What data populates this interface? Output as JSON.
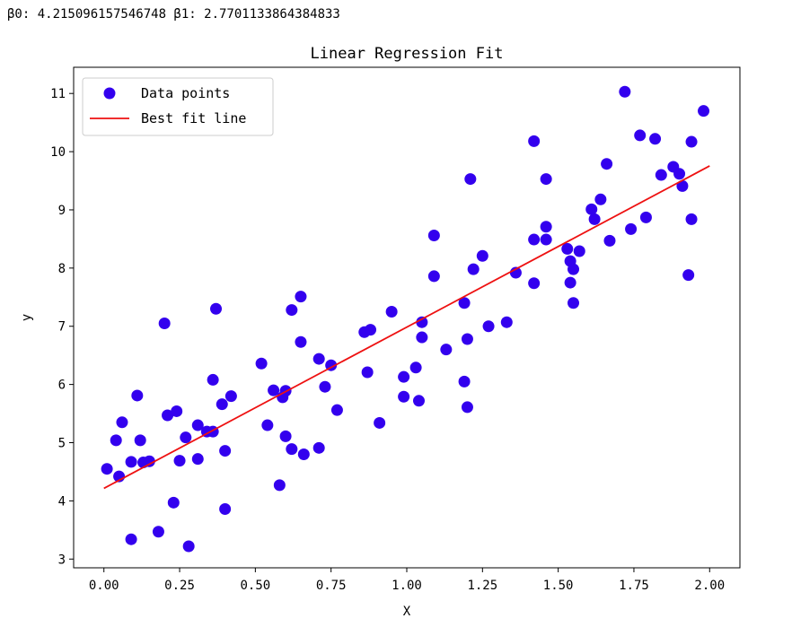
{
  "output": {
    "beta_line": "β0: 4.215096157546748 β1: 2.7701133864384833"
  },
  "chart_data": {
    "type": "scatter",
    "title": "Linear Regression Fit",
    "xlabel": "X",
    "ylabel": "y",
    "xlim": [
      -0.1,
      2.1
    ],
    "ylim": [
      2.85,
      11.45
    ],
    "xticks": [
      0.0,
      0.25,
      0.5,
      0.75,
      1.0,
      1.25,
      1.5,
      1.75,
      2.0
    ],
    "xtick_labels": [
      "0.00",
      "0.25",
      "0.50",
      "0.75",
      "1.00",
      "1.25",
      "1.50",
      "1.75",
      "2.00"
    ],
    "yticks": [
      3,
      4,
      5,
      6,
      7,
      8,
      9,
      10,
      11
    ],
    "ytick_labels": [
      "3",
      "4",
      "5",
      "6",
      "7",
      "8",
      "9",
      "10",
      "11"
    ],
    "grid": false,
    "legend_position": "top-left",
    "series": [
      {
        "name": "Data points",
        "kind": "scatter",
        "color": "#3300ee",
        "points": [
          [
            0.01,
            4.55
          ],
          [
            0.04,
            5.04
          ],
          [
            0.05,
            4.42
          ],
          [
            0.06,
            5.35
          ],
          [
            0.09,
            3.34
          ],
          [
            0.09,
            4.67
          ],
          [
            0.11,
            5.81
          ],
          [
            0.12,
            5.04
          ],
          [
            0.13,
            4.66
          ],
          [
            0.15,
            4.68
          ],
          [
            0.18,
            3.47
          ],
          [
            0.2,
            7.05
          ],
          [
            0.21,
            5.47
          ],
          [
            0.23,
            3.97
          ],
          [
            0.24,
            5.54
          ],
          [
            0.25,
            4.69
          ],
          [
            0.27,
            5.09
          ],
          [
            0.28,
            3.22
          ],
          [
            0.31,
            5.3
          ],
          [
            0.31,
            4.72
          ],
          [
            0.34,
            5.19
          ],
          [
            0.36,
            5.19
          ],
          [
            0.36,
            6.08
          ],
          [
            0.37,
            7.3
          ],
          [
            0.39,
            5.66
          ],
          [
            0.4,
            4.86
          ],
          [
            0.4,
            3.86
          ],
          [
            0.42,
            5.8
          ],
          [
            0.52,
            6.36
          ],
          [
            0.54,
            5.3
          ],
          [
            0.56,
            5.9
          ],
          [
            0.58,
            4.27
          ],
          [
            0.59,
            5.78
          ],
          [
            0.6,
            5.89
          ],
          [
            0.6,
            5.11
          ],
          [
            0.62,
            4.89
          ],
          [
            0.62,
            7.28
          ],
          [
            0.65,
            6.73
          ],
          [
            0.65,
            7.51
          ],
          [
            0.66,
            4.8
          ],
          [
            0.71,
            6.44
          ],
          [
            0.71,
            4.91
          ],
          [
            0.73,
            5.96
          ],
          [
            0.75,
            6.33
          ],
          [
            0.77,
            5.56
          ],
          [
            0.86,
            6.9
          ],
          [
            0.87,
            6.21
          ],
          [
            0.88,
            6.94
          ],
          [
            0.91,
            5.34
          ],
          [
            0.95,
            7.25
          ],
          [
            0.99,
            6.13
          ],
          [
            0.99,
            5.79
          ],
          [
            1.03,
            6.29
          ],
          [
            1.04,
            5.72
          ],
          [
            1.05,
            7.07
          ],
          [
            1.05,
            6.81
          ],
          [
            1.09,
            8.56
          ],
          [
            1.09,
            7.86
          ],
          [
            1.13,
            6.6
          ],
          [
            1.19,
            7.4
          ],
          [
            1.19,
            6.05
          ],
          [
            1.2,
            5.61
          ],
          [
            1.2,
            6.78
          ],
          [
            1.21,
            9.53
          ],
          [
            1.22,
            7.98
          ],
          [
            1.25,
            8.21
          ],
          [
            1.27,
            7.0
          ],
          [
            1.33,
            7.07
          ],
          [
            1.36,
            7.92
          ],
          [
            1.42,
            8.49
          ],
          [
            1.42,
            7.74
          ],
          [
            1.42,
            10.18
          ],
          [
            1.46,
            8.71
          ],
          [
            1.46,
            8.49
          ],
          [
            1.46,
            9.53
          ],
          [
            1.53,
            8.33
          ],
          [
            1.54,
            8.12
          ],
          [
            1.54,
            7.75
          ],
          [
            1.55,
            7.98
          ],
          [
            1.55,
            7.4
          ],
          [
            1.57,
            8.29
          ],
          [
            1.61,
            9.01
          ],
          [
            1.62,
            8.84
          ],
          [
            1.64,
            9.18
          ],
          [
            1.66,
            9.79
          ],
          [
            1.67,
            8.47
          ],
          [
            1.72,
            11.03
          ],
          [
            1.74,
            8.67
          ],
          [
            1.77,
            10.28
          ],
          [
            1.79,
            8.87
          ],
          [
            1.82,
            10.22
          ],
          [
            1.84,
            9.6
          ],
          [
            1.88,
            9.74
          ],
          [
            1.9,
            9.62
          ],
          [
            1.91,
            9.41
          ],
          [
            1.93,
            7.88
          ],
          [
            1.94,
            8.84
          ],
          [
            1.94,
            10.17
          ],
          [
            1.98,
            10.7
          ]
        ]
      },
      {
        "name": "Best fit line",
        "kind": "line",
        "color": "#ee1111",
        "points": [
          [
            0.0,
            4.215
          ],
          [
            2.0,
            9.755
          ]
        ]
      }
    ]
  }
}
